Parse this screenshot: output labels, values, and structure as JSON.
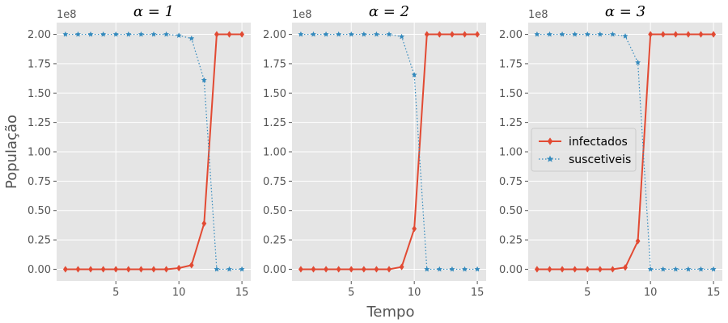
{
  "chart_data": {
    "type": "line",
    "xlabel": "Tempo",
    "ylabel": "População",
    "y_offset_text": "1e8",
    "xlim": [
      0.3,
      15.7
    ],
    "ylim": [
      -0.1,
      2.1
    ],
    "x_ticks": [
      5,
      10,
      15
    ],
    "y_ticks": [
      0.0,
      0.25,
      0.5,
      0.75,
      1.0,
      1.25,
      1.5,
      1.75,
      2.0
    ],
    "y_tick_labels": [
      "0.00",
      "0.25",
      "0.50",
      "0.75",
      "1.00",
      "1.25",
      "1.50",
      "1.75",
      "2.00"
    ],
    "grid": true,
    "legend": {
      "placement": "center-left of third panel",
      "entries": [
        "infectados",
        "suscetiveis"
      ]
    },
    "colors": {
      "infectados": "#E24A33",
      "suscetiveis": "#348ABD",
      "background": "#E5E5E5"
    },
    "panels": [
      {
        "title": "α = 1",
        "x": [
          1,
          2,
          3,
          4,
          5,
          6,
          7,
          8,
          9,
          10,
          11,
          12,
          13,
          14,
          15
        ],
        "series": [
          {
            "name": "infectados",
            "values": [
              0,
              0,
              0,
              0,
              0,
              0,
              0,
              0,
              0,
              0.01,
              0.035,
              0.39,
              2.0,
              2.0,
              2.0
            ]
          },
          {
            "name": "suscetiveis",
            "values": [
              2.0,
              2.0,
              2.0,
              2.0,
              2.0,
              2.0,
              2.0,
              2.0,
              2.0,
              1.99,
              1.965,
              1.61,
              0,
              0,
              0
            ]
          }
        ]
      },
      {
        "title": "α = 2",
        "x": [
          1,
          2,
          3,
          4,
          5,
          6,
          7,
          8,
          9,
          10,
          11,
          12,
          13,
          14,
          15
        ],
        "series": [
          {
            "name": "infectados",
            "values": [
              0,
              0,
              0,
              0,
              0,
              0,
              0,
              0,
              0.02,
              0.345,
              2.0,
              2.0,
              2.0,
              2.0,
              2.0
            ]
          },
          {
            "name": "suscetiveis",
            "values": [
              2.0,
              2.0,
              2.0,
              2.0,
              2.0,
              2.0,
              2.0,
              2.0,
              1.98,
              1.655,
              0,
              0,
              0,
              0,
              0
            ]
          }
        ]
      },
      {
        "title": "α = 3",
        "x": [
          1,
          2,
          3,
          4,
          5,
          6,
          7,
          8,
          9,
          10,
          11,
          12,
          13,
          14,
          15
        ],
        "series": [
          {
            "name": "infectados",
            "values": [
              0,
              0,
              0,
              0,
              0,
              0,
              0,
              0.015,
              0.24,
              2.0,
              2.0,
              2.0,
              2.0,
              2.0,
              2.0
            ]
          },
          {
            "name": "suscetiveis",
            "values": [
              2.0,
              2.0,
              2.0,
              2.0,
              2.0,
              2.0,
              2.0,
              1.985,
              1.76,
              0,
              0,
              0,
              0,
              0,
              0
            ]
          }
        ]
      }
    ]
  }
}
